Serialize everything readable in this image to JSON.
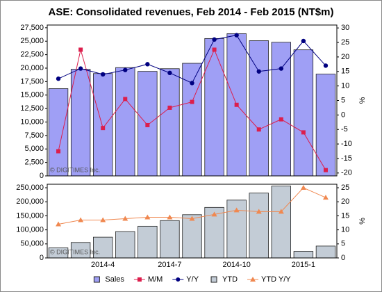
{
  "chart_data": [
    {
      "type": "bar",
      "title": "ASE: Consolidated revenues, Feb 2014 - Feb 2015 (NT$m)",
      "watermark": "© DIGITIMES Inc.",
      "y2label": "%",
      "ylim": [
        0,
        28000
      ],
      "yticks": [
        0,
        {
          "value": 2500,
          "label": "2,500"
        },
        {
          "value": 5000,
          "label": "5,000"
        },
        {
          "value": 7500,
          "label": "7,500"
        },
        {
          "value": 10000,
          "label": "10,000"
        },
        {
          "value": 12500,
          "label": "12,500"
        },
        {
          "value": 15000,
          "label": "15,000"
        },
        {
          "value": 17500,
          "label": "17,500"
        },
        {
          "value": 20000,
          "label": "20,000"
        },
        {
          "value": 22500,
          "label": "22,500"
        },
        {
          "value": 25000,
          "label": "25,000"
        },
        {
          "value": 27500,
          "label": "27,500"
        }
      ],
      "y2lim": [
        -21,
        31
      ],
      "y2ticks": [
        -20,
        -15,
        -10,
        -5,
        0,
        5,
        10,
        15,
        20,
        25,
        30
      ],
      "series": [
        {
          "name": "Sales",
          "type": "bar",
          "color": "#9f9ff5",
          "values": [
            16200,
            19800,
            19000,
            20100,
            19400,
            19900,
            20900,
            25500,
            26400,
            25100,
            24800,
            23400,
            18900
          ]
        },
        {
          "name": "M/M",
          "type": "line",
          "marker": "square",
          "axis": "y2",
          "color": "#dc1e4c",
          "values": [
            -12.5,
            22.5,
            -4.5,
            5.5,
            -3.5,
            2.5,
            4.5,
            22.5,
            3.5,
            -5,
            -1.5,
            -6,
            -19
          ]
        },
        {
          "name": "Y/Y",
          "type": "line",
          "marker": "circle",
          "axis": "y2",
          "color": "#000080",
          "values": [
            12.5,
            16,
            14,
            15.5,
            17.5,
            14.5,
            11,
            26,
            27.5,
            15,
            16,
            25.5,
            17
          ]
        }
      ]
    },
    {
      "type": "bar",
      "watermark": "© DIGITIMES Inc.",
      "y2label": "%",
      "categories": [
        null,
        null,
        "2014-4",
        null,
        null,
        "2014-7",
        null,
        null,
        "2014-10",
        null,
        null,
        "2015-1",
        null
      ],
      "ylim": [
        0,
        262500
      ],
      "yticks": [
        0,
        {
          "value": 50000,
          "label": "50,000"
        },
        {
          "value": 100000,
          "label": "100,000"
        },
        {
          "value": 150000,
          "label": "150,000"
        },
        {
          "value": 200000,
          "label": "200,000"
        },
        {
          "value": 250000,
          "label": "250,000"
        }
      ],
      "y2lim": [
        0,
        26.25
      ],
      "y2ticks": [
        0,
        5,
        10,
        15,
        20,
        25
      ],
      "series": [
        {
          "name": "YTD",
          "type": "bar",
          "color": "#c3ccd6",
          "values": [
            36000,
            55000,
            74000,
            94000,
            113000,
            133000,
            154000,
            180000,
            206000,
            231000,
            256000,
            23400,
            42300
          ]
        },
        {
          "name": "YTD Y/Y",
          "type": "line",
          "marker": "triangle",
          "axis": "y2",
          "color": "#f08850",
          "values": [
            12,
            13.5,
            13.5,
            14,
            14.5,
            14.5,
            14,
            15.5,
            17,
            16.5,
            16.5,
            25,
            21.5
          ]
        }
      ]
    }
  ]
}
